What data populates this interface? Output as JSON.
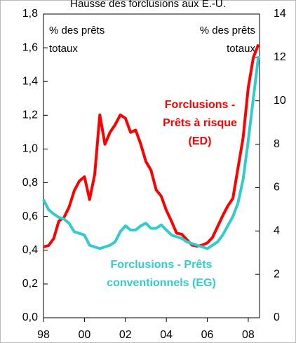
{
  "chart_data": {
    "type": "line",
    "title": "Hausse des forclusions aux É.-U.",
    "x": [
      1998,
      1998.25,
      1998.5,
      1998.75,
      1999,
      1999.25,
      1999.5,
      1999.75,
      2000,
      2000.25,
      2000.5,
      2000.75,
      2001,
      2001.25,
      2001.5,
      2001.75,
      2002,
      2002.25,
      2002.5,
      2002.75,
      2003,
      2003.25,
      2003.5,
      2003.75,
      2004,
      2004.25,
      2004.5,
      2004.75,
      2005,
      2005.25,
      2005.5,
      2005.75,
      2006,
      2006.25,
      2006.5,
      2006.75,
      2007,
      2007.25,
      2007.5,
      2007.75,
      2008,
      2008.25,
      2008.5
    ],
    "series": [
      {
        "name_lines": [
          "Forclusions -",
          "Prêts à risque",
          "(ED)"
        ],
        "color": "#ff0000",
        "axis": "y2",
        "values": [
          3.27,
          3.33,
          3.65,
          4.46,
          4.62,
          5.1,
          5.85,
          6.3,
          6.5,
          5.45,
          6.6,
          9.35,
          8.0,
          8.55,
          8.9,
          9.35,
          9.2,
          8.55,
          8.65,
          8.0,
          7.2,
          6.8,
          5.9,
          5.6,
          4.95,
          4.45,
          3.9,
          3.85,
          3.6,
          3.35,
          3.3,
          3.35,
          3.45,
          3.7,
          4.2,
          4.7,
          5.15,
          5.5,
          6.9,
          8.3,
          10.6,
          12.0,
          12.6
        ]
      },
      {
        "name_lines": [
          "Forclusions - Prêts",
          "conventionnels (EG)"
        ],
        "color": "#33cccc",
        "axis": "y",
        "values": [
          0.7,
          0.64,
          0.615,
          0.595,
          0.585,
          0.56,
          0.51,
          0.5,
          0.49,
          0.43,
          0.42,
          0.41,
          0.42,
          0.43,
          0.45,
          0.51,
          0.545,
          0.52,
          0.52,
          0.545,
          0.56,
          0.53,
          0.53,
          0.55,
          0.52,
          0.49,
          0.48,
          0.47,
          0.45,
          0.44,
          0.43,
          0.42,
          0.41,
          0.43,
          0.45,
          0.49,
          0.545,
          0.6,
          0.68,
          0.82,
          1.05,
          1.3,
          1.55
        ]
      }
    ],
    "xlim": [
      1998,
      2008.55
    ],
    "xticks": [
      {
        "value": 1998,
        "label": "98"
      },
      {
        "value": 2000,
        "label": "00"
      },
      {
        "value": 2002,
        "label": "02"
      },
      {
        "value": 2004,
        "label": "04"
      },
      {
        "value": 2006,
        "label": "06"
      },
      {
        "value": 2008,
        "label": "08"
      }
    ],
    "ylim": [
      0,
      1.8
    ],
    "yticks": [
      {
        "value": 0,
        "label": "0,0"
      },
      {
        "value": 0.2,
        "label": "0,2"
      },
      {
        "value": 0.4,
        "label": "0,4"
      },
      {
        "value": 0.6,
        "label": "0,6"
      },
      {
        "value": 0.8,
        "label": "0,8"
      },
      {
        "value": 1.0,
        "label": "1,0"
      },
      {
        "value": 1.2,
        "label": "1,2"
      },
      {
        "value": 1.4,
        "label": "1,4"
      },
      {
        "value": 1.6,
        "label": "1,6"
      },
      {
        "value": 1.8,
        "label": "1,8"
      }
    ],
    "y2lim": [
      0,
      14
    ],
    "y2ticks": [
      0,
      2,
      4,
      6,
      8,
      10,
      12,
      14
    ],
    "ylabel_lines": [
      "% des prêts",
      "totaux"
    ],
    "y2label_lines": [
      "% des prêts",
      "totaux"
    ]
  }
}
